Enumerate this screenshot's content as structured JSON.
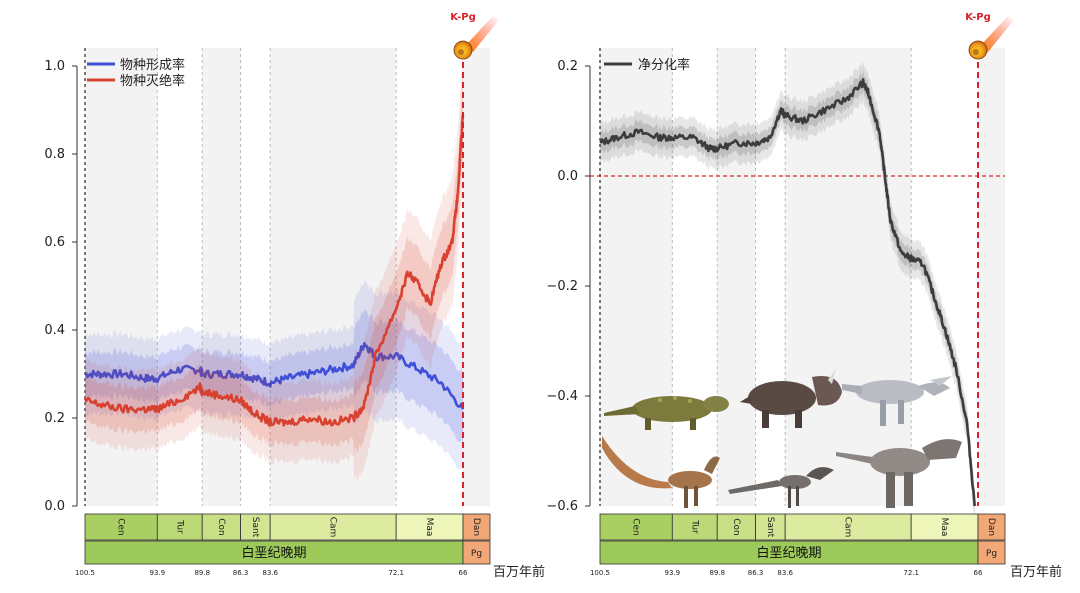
{
  "unit_label": "百万年前",
  "kpg_label": "K-Pg",
  "period_label": "白垩纪晚期",
  "paleogene_label": "Pg",
  "age_ticks": [
    "100.5",
    "93.9",
    "89.8",
    "86.3",
    "83.6",
    "72.1",
    "66"
  ],
  "stages": [
    {
      "label": "Cen",
      "start": 100.5,
      "end": 93.9,
      "color": "#a9cf62"
    },
    {
      "label": "Tur",
      "start": 93.9,
      "end": 89.8,
      "color": "#bcd978"
    },
    {
      "label": "Con",
      "start": 89.8,
      "end": 86.3,
      "color": "#c8df86"
    },
    {
      "label": "Sant",
      "start": 86.3,
      "end": 83.6,
      "color": "#d3e592"
    },
    {
      "label": "Cam",
      "start": 83.6,
      "end": 72.1,
      "color": "#dceba0"
    },
    {
      "label": "Maa",
      "start": 72.1,
      "end": 66,
      "color": "#eef5b8"
    },
    {
      "label": "Dan",
      "start": 66,
      "end": 65,
      "color": "#f2a776"
    }
  ],
  "colors": {
    "speciation": "#3f4fd8",
    "extinction": "#d8412f",
    "net": "#3c3c3c",
    "kpg": "#d6242b",
    "period": "#9cc95a"
  },
  "chart_data": [
    {
      "type": "line",
      "xlim": [
        100.5,
        65
      ],
      "ylim": [
        0,
        1.0
      ],
      "y_ticks": [
        "0.0",
        "0.2",
        "0.4",
        "0.6",
        "0.8",
        "1.0"
      ],
      "legend": "top-left",
      "grid": false,
      "series": [
        {
          "name": "物种形成率",
          "x": [
            100.5,
            99,
            97,
            95,
            93.9,
            92,
            90,
            89.8,
            88,
            86.3,
            85,
            83.6,
            82,
            80,
            78,
            76,
            75,
            74,
            72.1,
            70,
            68,
            66
          ],
          "values": [
            0.3,
            0.3,
            0.3,
            0.29,
            0.29,
            0.31,
            0.31,
            0.3,
            0.3,
            0.3,
            0.29,
            0.28,
            0.29,
            0.3,
            0.31,
            0.32,
            0.37,
            0.34,
            0.34,
            0.31,
            0.28,
            0.22
          ]
        },
        {
          "name": "物种灭绝率",
          "x": [
            100.5,
            99,
            97,
            95,
            93.9,
            92,
            90,
            89.8,
            88,
            86.3,
            85,
            83.6,
            82,
            80,
            78,
            76,
            75,
            74,
            72.1,
            71,
            70,
            69,
            68,
            67,
            66.5,
            66
          ],
          "values": [
            0.24,
            0.23,
            0.22,
            0.22,
            0.22,
            0.24,
            0.27,
            0.26,
            0.25,
            0.24,
            0.21,
            0.19,
            0.19,
            0.2,
            0.19,
            0.2,
            0.23,
            0.34,
            0.45,
            0.53,
            0.5,
            0.46,
            0.55,
            0.6,
            0.7,
            0.89
          ]
        }
      ]
    },
    {
      "type": "line",
      "xlim": [
        100.5,
        65
      ],
      "ylim": [
        -0.6,
        0.2
      ],
      "y_ticks": [
        "−0.6",
        "−0.4",
        "−0.2",
        "0.0",
        "0.2"
      ],
      "legend": "top-left",
      "grid": false,
      "reference_line": 0,
      "series": [
        {
          "name": "净分化率",
          "x": [
            100.5,
            99,
            97,
            95,
            93.9,
            92,
            90.5,
            89.8,
            88,
            86.3,
            85,
            84,
            83.6,
            82,
            80,
            78,
            76.5,
            76,
            75,
            74.5,
            74,
            73,
            72.1,
            71,
            70,
            69,
            68,
            67,
            66.3
          ],
          "values": [
            0.06,
            0.07,
            0.08,
            0.07,
            0.07,
            0.07,
            0.05,
            0.05,
            0.06,
            0.06,
            0.07,
            0.12,
            0.11,
            0.1,
            0.12,
            0.14,
            0.17,
            0.15,
            0.08,
            0.0,
            -0.08,
            -0.14,
            -0.15,
            -0.16,
            -0.22,
            -0.28,
            -0.35,
            -0.45,
            -0.6
          ]
        }
      ]
    }
  ]
}
